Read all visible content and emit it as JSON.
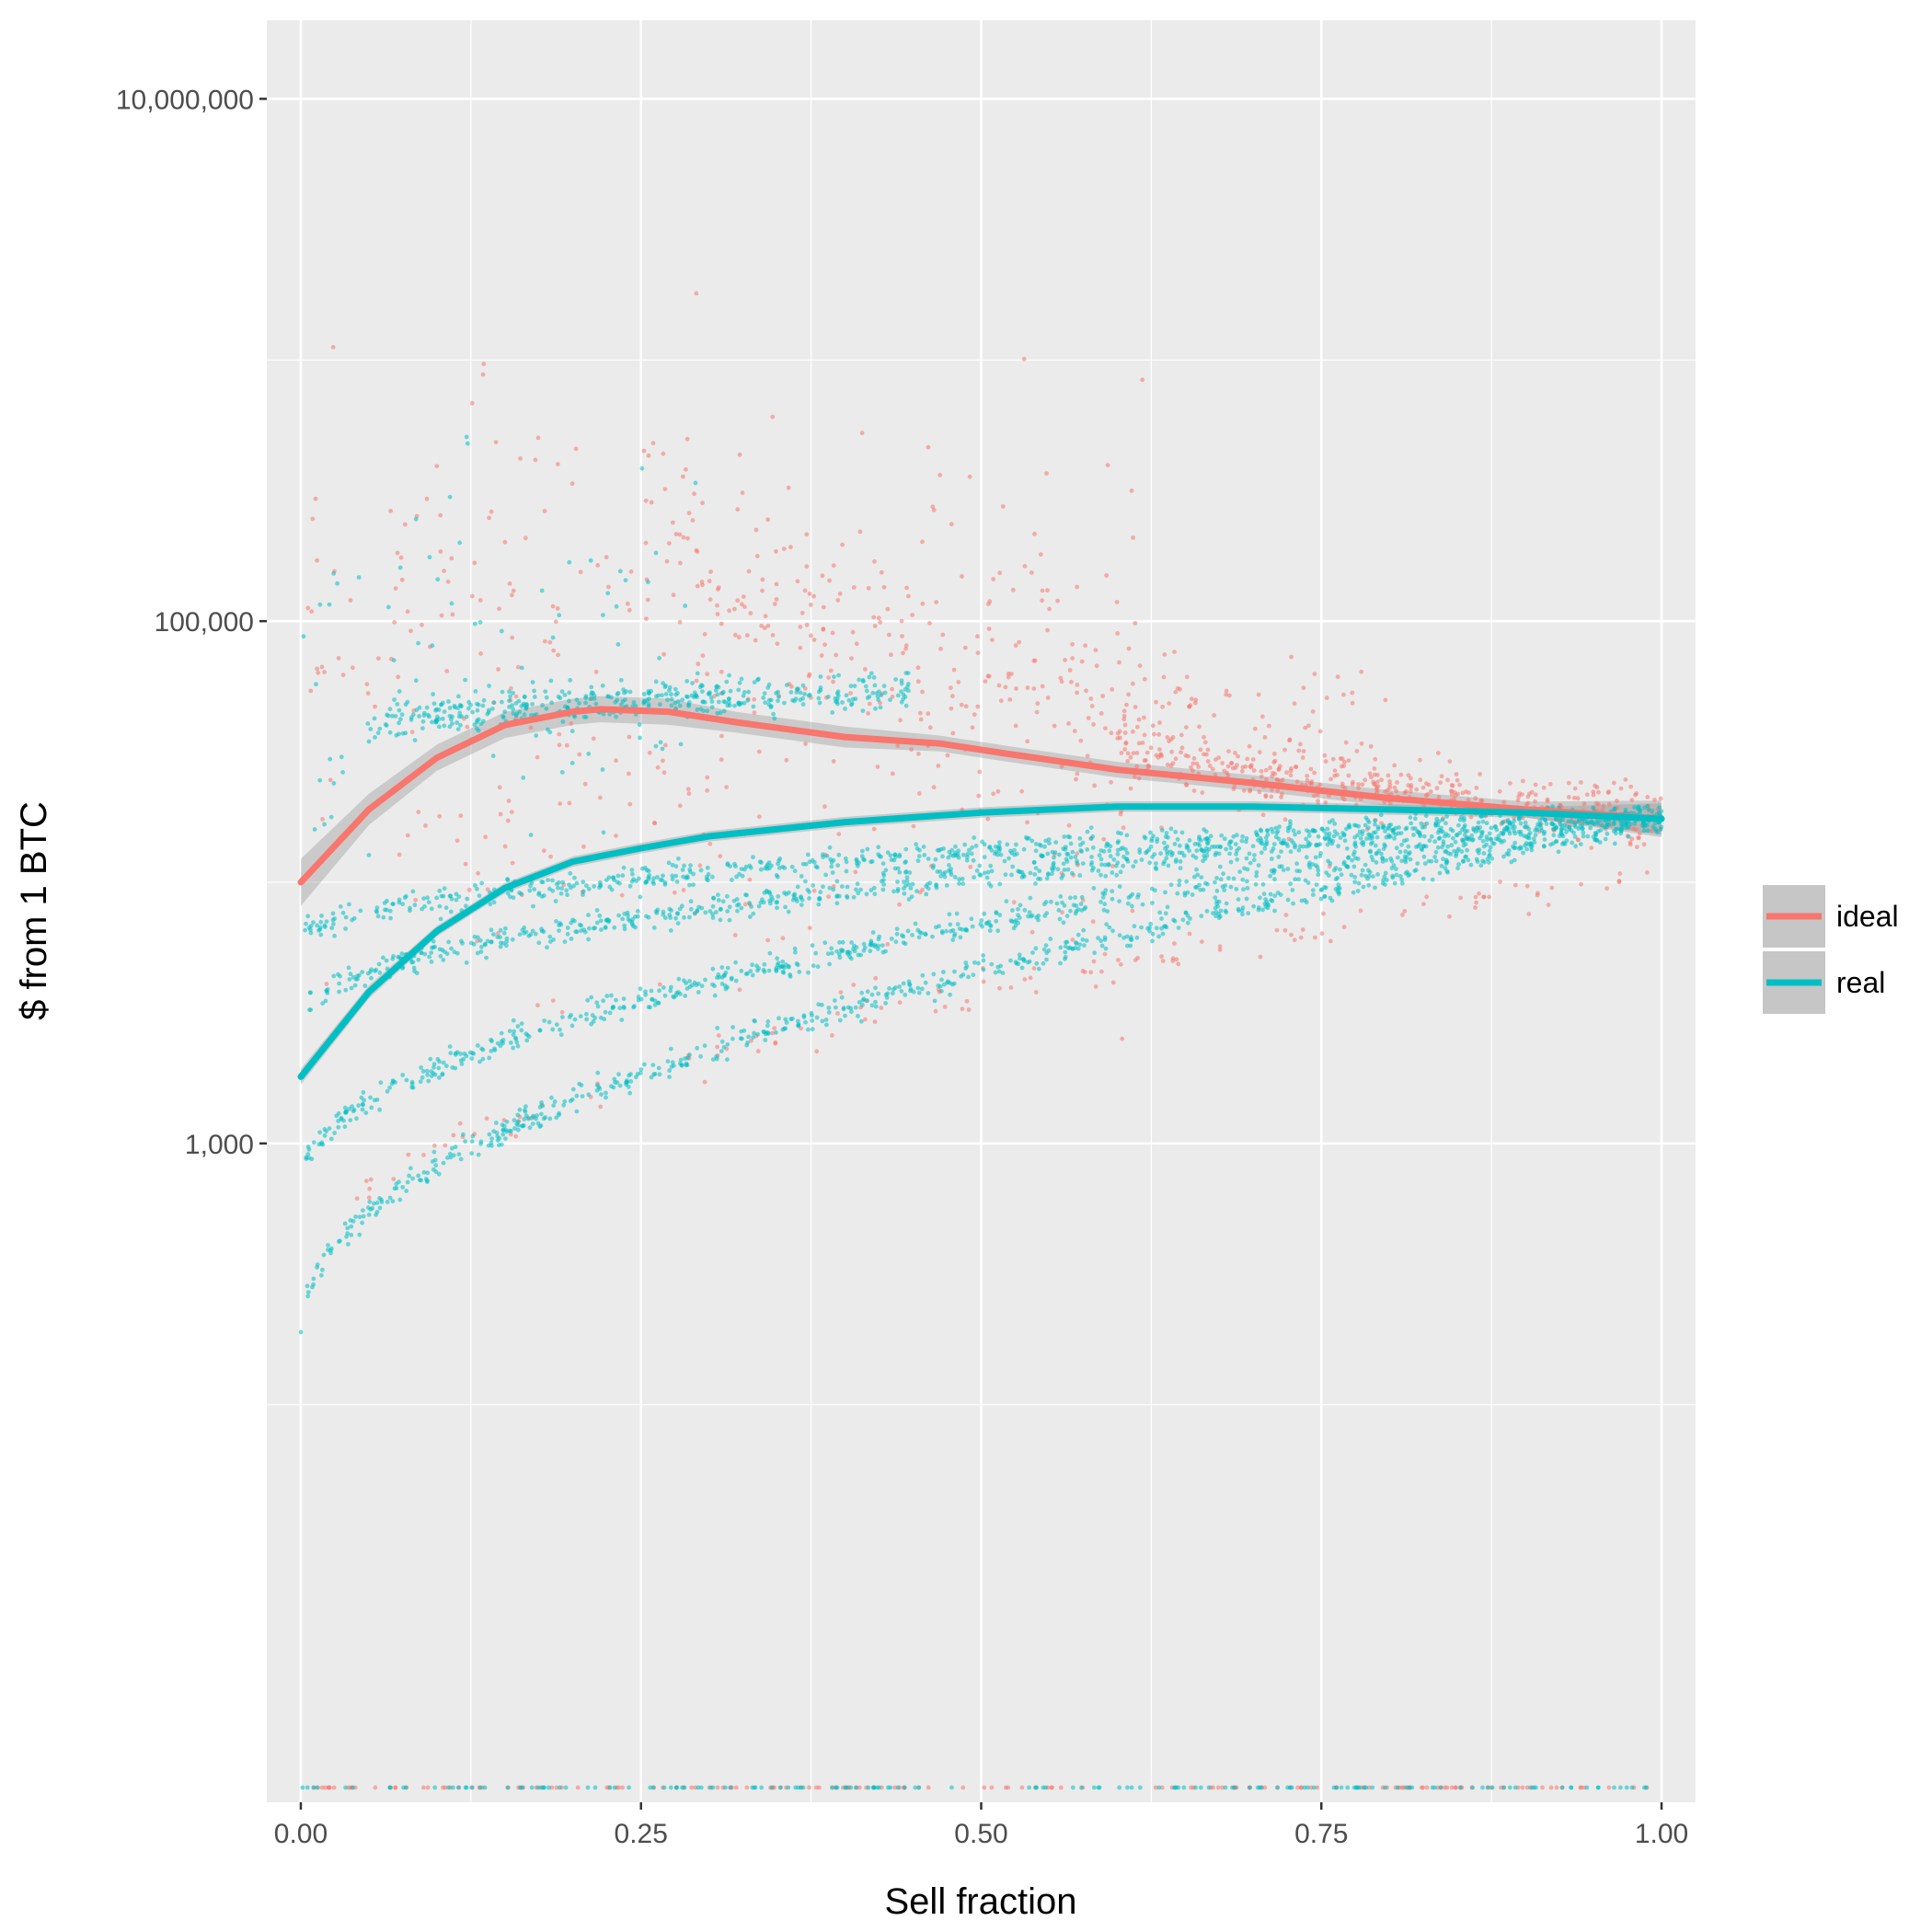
{
  "chart_data": {
    "type": "scatter",
    "title": "",
    "xlabel": "Sell fraction",
    "ylabel": "$ from 1 BTC",
    "xlim": [
      -0.025,
      1.025
    ],
    "ylim": [
      3,
      20000000
    ],
    "y_scale": "log10",
    "x_ticks": [
      0,
      0.25,
      0.5,
      0.75,
      1
    ],
    "x_tick_labels": [
      "0.00",
      "0.25",
      "0.50",
      "0.75",
      "1.00"
    ],
    "y_ticks": [
      1000,
      100000,
      10000000
    ],
    "y_tick_labels": [
      "1,000",
      "100,000",
      "10,000,000"
    ],
    "y_minor_grid": [
      100,
      10000,
      1000000
    ],
    "grid": true,
    "legend_position": "right",
    "background": "#EBEBEB",
    "series": [
      {
        "name": "ideal",
        "color": "#F8766D",
        "smooth_line": {
          "x": [
            0,
            0.05,
            0.1,
            0.15,
            0.2,
            0.22,
            0.27,
            0.32,
            0.4,
            0.47,
            0.52,
            0.6,
            0.7,
            0.8,
            0.9,
            1.0
          ],
          "y": [
            10000,
            19000,
            30000,
            40000,
            45000,
            46000,
            45000,
            41000,
            36000,
            34000,
            31000,
            27000,
            24000,
            21000,
            19000,
            17500
          ]
        },
        "ribbon_halfwidth_log10": [
          0.09,
          0.06,
          0.05,
          0.05,
          0.05,
          0.05,
          0.05,
          0.04,
          0.04,
          0.03,
          0.03,
          0.03,
          0.03,
          0.03,
          0.03,
          0.07
        ],
        "point_bands": [
          {
            "x": [
              0,
              0.62
            ],
            "y_start": 50000,
            "y_end": 46000,
            "spread_log10": 1.2,
            "count": 380
          },
          {
            "x": [
              0.25,
              0.8
            ],
            "y_start": 350000,
            "y_end": 30000,
            "spread_log10": 0.35,
            "count": 260
          },
          {
            "x": [
              0.6,
              1.0
            ],
            "y_start": 40000,
            "y_end": 17500,
            "spread_log10": 0.12,
            "count": 420
          },
          {
            "x": [
              0,
              1.0
            ],
            "y_start": 300,
            "y_end": 11000,
            "spread_log10": 0.06,
            "count": 120
          }
        ]
      },
      {
        "name": "real",
        "color": "#00BFC4",
        "smooth_line": {
          "x": [
            0,
            0.05,
            0.1,
            0.15,
            0.2,
            0.25,
            0.3,
            0.4,
            0.5,
            0.6,
            0.7,
            0.8,
            0.9,
            1.0
          ],
          "y": [
            1800,
            3800,
            6500,
            9500,
            12000,
            13500,
            15000,
            17000,
            18500,
            19500,
            19500,
            19000,
            18500,
            17500
          ]
        },
        "ribbon_halfwidth_log10": [
          0.03,
          0.025,
          0.02,
          0.02,
          0.02,
          0.02,
          0.02,
          0.02,
          0.02,
          0.02,
          0.02,
          0.02,
          0.02,
          0.06
        ],
        "point_bands": [
          {
            "x": [
              0.05,
              0.45
            ],
            "y_start": 38000,
            "y_end": 55000,
            "spread_log10": 0.07,
            "count": 420
          },
          {
            "x": [
              0.0,
              1.0
            ],
            "y_start": 6000,
            "y_end": 18000,
            "spread_log10": 0.05,
            "count": 700
          },
          {
            "x": [
              0.0,
              1.0
            ],
            "y_start": 3000,
            "y_end": 18000,
            "spread_log10": 0.05,
            "count": 700
          },
          {
            "x": [
              0.0,
              1.0
            ],
            "y_start": 700,
            "y_end": 18000,
            "spread_log10": 0.05,
            "count": 700
          },
          {
            "x": [
              0.0,
              1.0
            ],
            "y_start": 200,
            "y_end": 17000,
            "spread_log10": 0.05,
            "count": 700
          },
          {
            "x": [
              0.0,
              0.3
            ],
            "y_start": 50000,
            "y_end": 70000,
            "spread_log10": 0.8,
            "count": 90
          }
        ]
      }
    ]
  }
}
